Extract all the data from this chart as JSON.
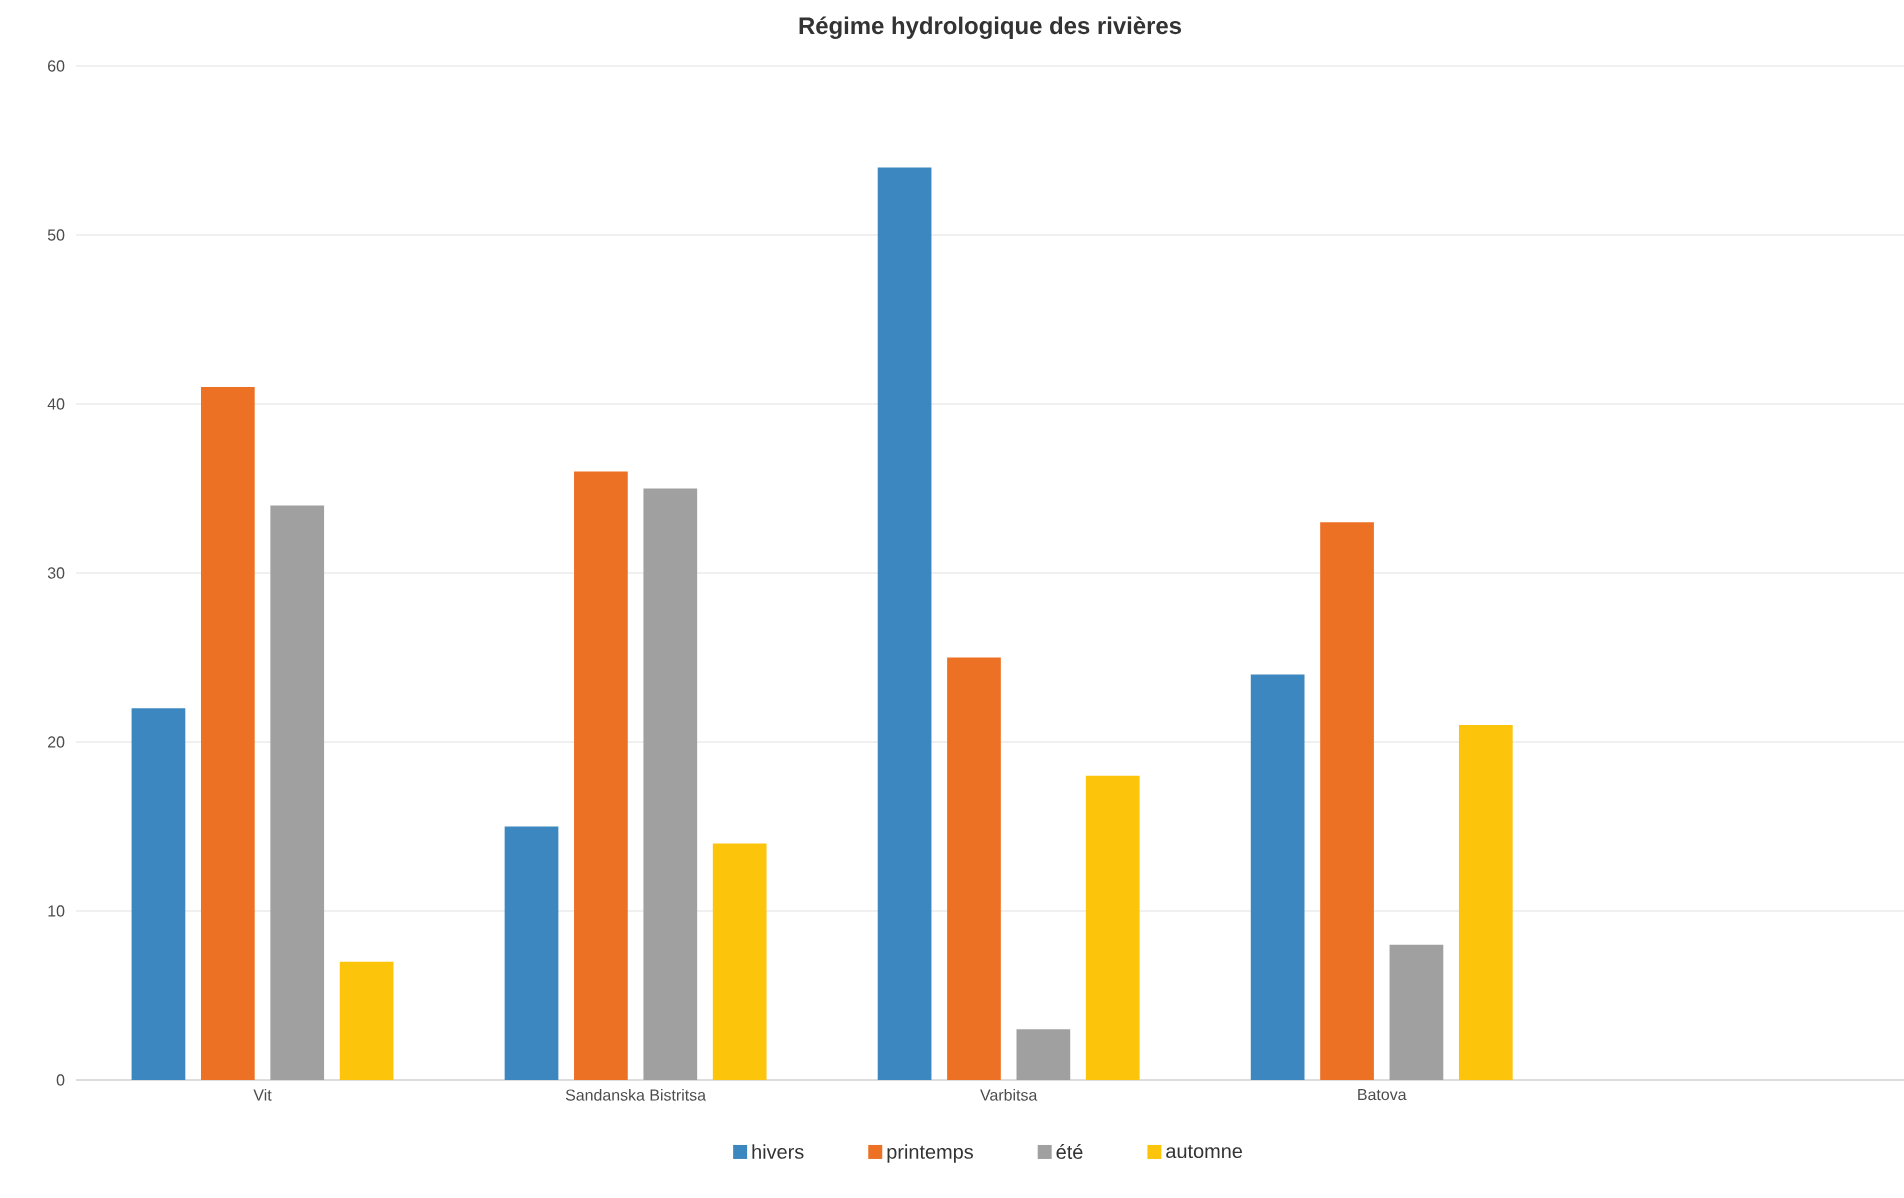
{
  "chart_data": {
    "type": "bar",
    "title": "Régime hydrologique des rivières",
    "categories": [
      "Vit",
      "Sandanska Bistritsa",
      "Varbitsa",
      "Batova"
    ],
    "series": [
      {
        "name": "hivers",
        "color": "#3c87c0",
        "values": [
          22,
          15,
          54,
          24
        ]
      },
      {
        "name": "printemps",
        "color": "#ed7125",
        "values": [
          41,
          36,
          25,
          33
        ]
      },
      {
        "name": "été",
        "color": "#a0a0a0",
        "values": [
          34,
          35,
          3,
          8
        ]
      },
      {
        "name": "automne",
        "color": "#fdc40c",
        "values": [
          7,
          14,
          18,
          21
        ]
      }
    ],
    "ylim": [
      0,
      60
    ],
    "yticks": [
      0,
      10,
      20,
      30,
      40,
      50,
      60
    ],
    "grid": "y",
    "legend": "bottom"
  }
}
